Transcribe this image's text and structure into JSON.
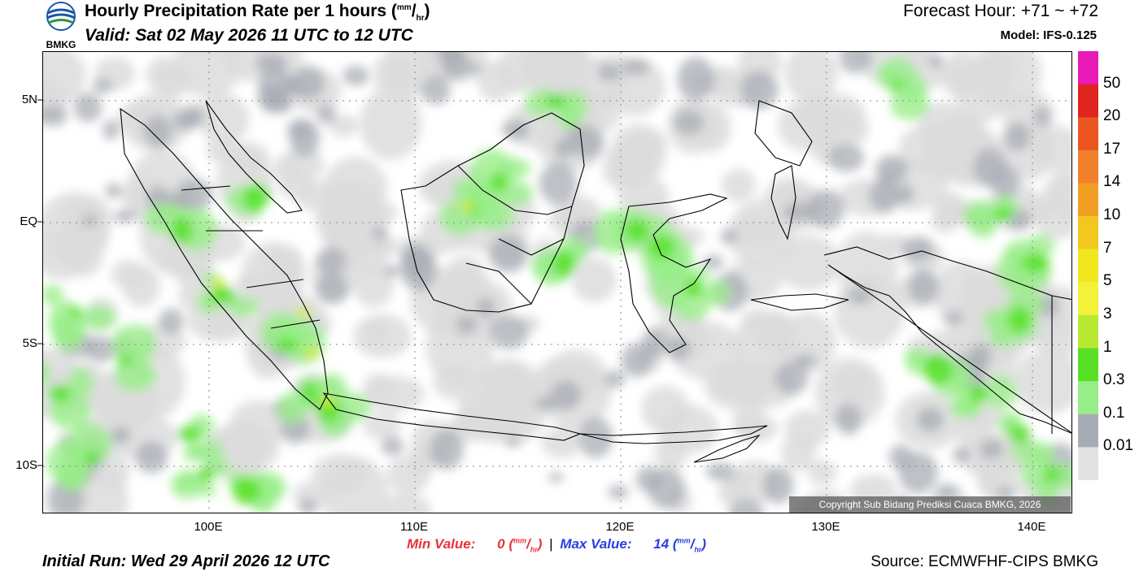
{
  "header": {
    "logo_text": "BMKG",
    "title": "Hourly Precipitation Rate per 1 hours (",
    "title_unit_sup": "mm",
    "title_unit_sub": "hr",
    "title_close": ")",
    "valid": "Valid: Sat 02 May 2026 11 UTC to 12 UTC",
    "forecast_hour": "Forecast Hour: +71 ~ +72",
    "model": "Model: IFS-0.125"
  },
  "map": {
    "lat_labels": [
      "5N",
      "EQ",
      "5S",
      "10S"
    ],
    "lon_labels": [
      "100E",
      "110E",
      "120E",
      "130E",
      "140E"
    ],
    "copyright": "Copyright Sub Bidang Prediksi Cuaca BMKG, 2026"
  },
  "legend": {
    "levels": [
      "50",
      "20",
      "17",
      "14",
      "10",
      "7",
      "5",
      "3",
      "1",
      "0.3",
      "0.1",
      "0.01"
    ],
    "colors": [
      "#e81ab8",
      "#e02420",
      "#ea5522",
      "#f0802a",
      "#f2a025",
      "#f2c81e",
      "#f0e81c",
      "#f2f23a",
      "#b8e832",
      "#58e025",
      "#98ee88",
      "#a8acb4",
      "#e2e2e2"
    ]
  },
  "footer": {
    "min_label": "Min Value:",
    "min_value": "0",
    "max_label": "Max Value:",
    "max_value": "14",
    "unit_sup": "mm",
    "unit_sub": "hr",
    "separator": "|",
    "initial_run": "Initial Run: Wed 29 April 2026 12 UTC",
    "source": "Source: ECMWFHF-CIPS BMKG"
  }
}
